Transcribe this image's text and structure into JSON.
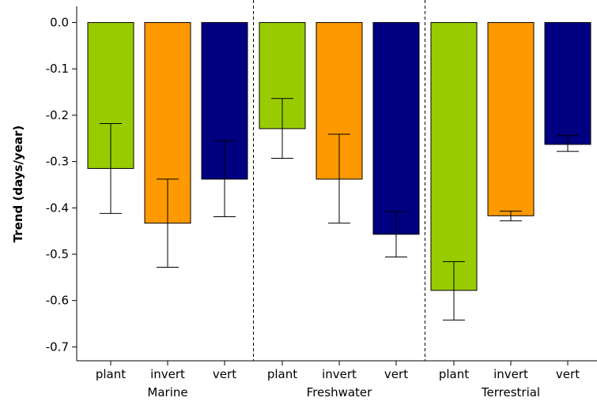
{
  "chart_data": {
    "type": "bar",
    "title": "",
    "xlabel": "",
    "ylabel": "Trend (days/year)",
    "ylim": [
      -0.73,
      0.035
    ],
    "yticks": [
      0.0,
      -0.1,
      -0.2,
      -0.3,
      -0.4,
      -0.5,
      -0.6,
      -0.7
    ],
    "ytick_labels": [
      "0.0",
      "-0.1",
      "-0.2",
      "-0.3",
      "-0.4",
      "-0.5",
      "-0.6",
      "-0.7"
    ],
    "grid": false,
    "groups": [
      {
        "name": "Marine",
        "categories": [
          "plant",
          "invert",
          "vert"
        ],
        "values": [
          -0.315,
          -0.433,
          -0.338
        ],
        "error_low": [
          -0.412,
          -0.528,
          -0.419
        ],
        "error_high": [
          -0.218,
          -0.338,
          -0.255
        ]
      },
      {
        "name": "Freshwater",
        "categories": [
          "plant",
          "invert",
          "vert"
        ],
        "values": [
          -0.229,
          -0.338,
          -0.457
        ],
        "error_low": [
          -0.293,
          -0.433,
          -0.506
        ],
        "error_high": [
          -0.164,
          -0.241,
          -0.408
        ]
      },
      {
        "name": "Terrestrial",
        "categories": [
          "plant",
          "invert",
          "vert"
        ],
        "values": [
          -0.578,
          -0.417,
          -0.263
        ],
        "error_low": [
          -0.642,
          -0.428,
          -0.278
        ],
        "error_high": [
          -0.516,
          -0.407,
          -0.244
        ]
      }
    ],
    "colors": {
      "plant": "#99cc00",
      "invert": "#ff9900",
      "vert": "#000080",
      "axis": "#000000",
      "separator": "#000000"
    }
  }
}
